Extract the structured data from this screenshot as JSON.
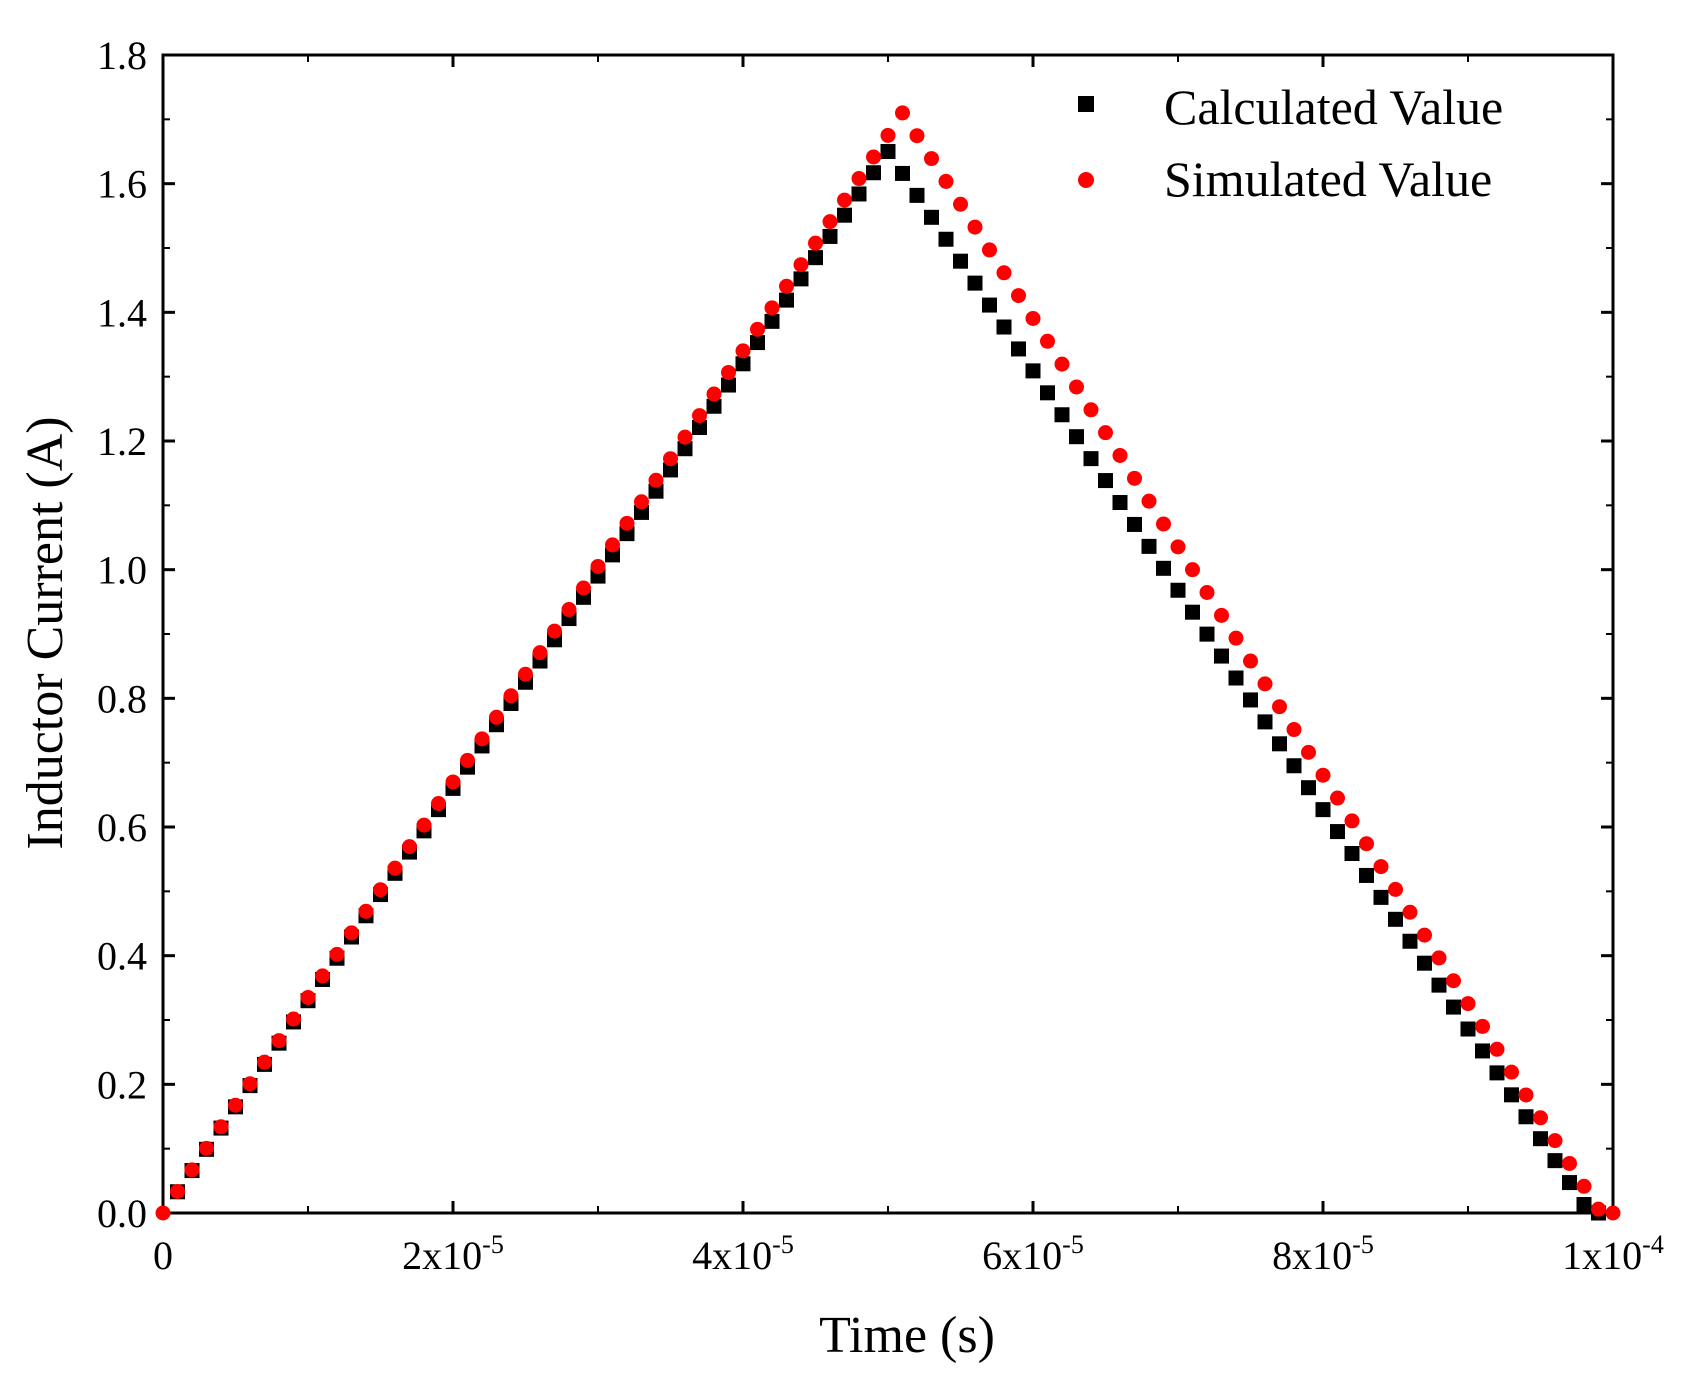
{
  "chart_data": {
    "type": "scatter",
    "title": "",
    "xlabel": "Time (s)",
    "ylabel": "Inductor Current (A)",
    "xlim": [
      0,
      0.0001
    ],
    "ylim": [
      0,
      1.8
    ],
    "x_ticks": [
      {
        "value": 0,
        "mant": "0",
        "exp": ""
      },
      {
        "value": 2e-05,
        "mant": "2x10",
        "exp": "-5"
      },
      {
        "value": 4e-05,
        "mant": "4x10",
        "exp": "-5"
      },
      {
        "value": 6e-05,
        "mant": "6x10",
        "exp": "-5"
      },
      {
        "value": 8e-05,
        "mant": "8x10",
        "exp": "-5"
      },
      {
        "value": 0.0001,
        "mant": "1x10",
        "exp": "-4"
      }
    ],
    "y_ticks": [
      {
        "value": 0.0,
        "label": "0.0"
      },
      {
        "value": 0.2,
        "label": "0.2"
      },
      {
        "value": 0.4,
        "label": "0.4"
      },
      {
        "value": 0.6,
        "label": "0.6"
      },
      {
        "value": 0.8,
        "label": "0.8"
      },
      {
        "value": 1.0,
        "label": "1.0"
      },
      {
        "value": 1.2,
        "label": "1.2"
      },
      {
        "value": 1.4,
        "label": "1.4"
      },
      {
        "value": 1.6,
        "label": "1.6"
      },
      {
        "value": 1.8,
        "label": "1.8"
      }
    ],
    "legend_position": "top-right",
    "series": [
      {
        "name": "Calculated Value",
        "marker": "square",
        "color": "#000000",
        "x": [
          1e-06,
          2e-06,
          3e-06,
          4e-06,
          5e-06,
          6e-06,
          7e-06,
          8e-06,
          9e-06,
          1e-05,
          1.1e-05,
          1.2e-05,
          1.3e-05,
          1.4e-05,
          1.5e-05,
          1.6e-05,
          1.7e-05,
          1.8e-05,
          1.9e-05,
          2e-05,
          2.1e-05,
          2.2e-05,
          2.3e-05,
          2.4e-05,
          2.5e-05,
          2.6e-05,
          2.7e-05,
          2.8e-05,
          2.9e-05,
          3e-05,
          3.1e-05,
          3.2e-05,
          3.3e-05,
          3.4e-05,
          3.5e-05,
          3.6e-05,
          3.7e-05,
          3.8e-05,
          3.9e-05,
          4e-05,
          4.1e-05,
          4.2e-05,
          4.3e-05,
          4.4e-05,
          4.5e-05,
          4.6e-05,
          4.7e-05,
          4.8e-05,
          4.9e-05,
          5e-05,
          5.1e-05,
          5.2e-05,
          5.3e-05,
          5.4e-05,
          5.5e-05,
          5.6e-05,
          5.7e-05,
          5.8e-05,
          5.9e-05,
          6e-05,
          6.1e-05,
          6.2e-05,
          6.3e-05,
          6.4e-05,
          6.5e-05,
          6.6e-05,
          6.7e-05,
          6.8e-05,
          6.9e-05,
          7e-05,
          7.1e-05,
          7.2e-05,
          7.3e-05,
          7.4e-05,
          7.5e-05,
          7.6e-05,
          7.7e-05,
          7.8e-05,
          7.9e-05,
          8e-05,
          8.1e-05,
          8.2e-05,
          8.3e-05,
          8.4e-05,
          8.5e-05,
          8.6e-05,
          8.7e-05,
          8.8e-05,
          8.9e-05,
          9e-05,
          9.1e-05,
          9.2e-05,
          9.3e-05,
          9.4e-05,
          9.5e-05,
          9.6e-05,
          9.7e-05,
          9.8e-05,
          9.9e-05
        ],
        "y": [
          0.033,
          0.066,
          0.099,
          0.132,
          0.165,
          0.198,
          0.231,
          0.264,
          0.297,
          0.33,
          0.363,
          0.396,
          0.429,
          0.462,
          0.495,
          0.528,
          0.561,
          0.594,
          0.627,
          0.66,
          0.693,
          0.726,
          0.759,
          0.792,
          0.825,
          0.858,
          0.891,
          0.924,
          0.957,
          0.99,
          1.023,
          1.056,
          1.089,
          1.122,
          1.155,
          1.188,
          1.221,
          1.254,
          1.287,
          1.32,
          1.353,
          1.386,
          1.419,
          1.452,
          1.485,
          1.518,
          1.551,
          1.584,
          1.617,
          1.65,
          1.6159,
          1.5818,
          1.5477,
          1.5136,
          1.4795,
          1.4454,
          1.4113,
          1.3772,
          1.3431,
          1.309,
          1.2749,
          1.2408,
          1.2067,
          1.1726,
          1.1385,
          1.1044,
          1.0703,
          1.0362,
          1.0021,
          0.968,
          0.9339,
          0.8998,
          0.8657,
          0.8316,
          0.7975,
          0.7634,
          0.7293,
          0.6952,
          0.6611,
          0.627,
          0.5929,
          0.5588,
          0.5247,
          0.4906,
          0.4565,
          0.4224,
          0.3883,
          0.3542,
          0.3201,
          0.286,
          0.2519,
          0.2178,
          0.1837,
          0.1496,
          0.1155,
          0.0814,
          0.0473,
          0.0132,
          0.0
        ]
      },
      {
        "name": "Simulated Value",
        "marker": "circle",
        "color": "#ff0000",
        "x": [
          0.0,
          1e-06,
          2e-06,
          3e-06,
          4e-06,
          5e-06,
          6e-06,
          7e-06,
          8e-06,
          9e-06,
          1e-05,
          1.1e-05,
          1.2e-05,
          1.3e-05,
          1.4e-05,
          1.5e-05,
          1.6e-05,
          1.7e-05,
          1.8e-05,
          1.9e-05,
          2e-05,
          2.1e-05,
          2.2e-05,
          2.3e-05,
          2.4e-05,
          2.5e-05,
          2.6e-05,
          2.7e-05,
          2.8e-05,
          2.9e-05,
          3e-05,
          3.1e-05,
          3.2e-05,
          3.3e-05,
          3.4e-05,
          3.5e-05,
          3.6e-05,
          3.7e-05,
          3.8e-05,
          3.9e-05,
          4e-05,
          4.1e-05,
          4.2e-05,
          4.3e-05,
          4.4e-05,
          4.5e-05,
          4.6e-05,
          4.7e-05,
          4.8e-05,
          4.9e-05,
          5e-05,
          5.1e-05,
          5.2e-05,
          5.3e-05,
          5.4e-05,
          5.5e-05,
          5.6e-05,
          5.7e-05,
          5.8e-05,
          5.9e-05,
          6e-05,
          6.1e-05,
          6.2e-05,
          6.3e-05,
          6.4e-05,
          6.5e-05,
          6.6e-05,
          6.7e-05,
          6.8e-05,
          6.9e-05,
          7e-05,
          7.1e-05,
          7.2e-05,
          7.3e-05,
          7.4e-05,
          7.5e-05,
          7.6e-05,
          7.7e-05,
          7.8e-05,
          7.9e-05,
          8e-05,
          8.1e-05,
          8.2e-05,
          8.3e-05,
          8.4e-05,
          8.5e-05,
          8.6e-05,
          8.7e-05,
          8.8e-05,
          8.9e-05,
          9e-05,
          9.1e-05,
          9.2e-05,
          9.3e-05,
          9.4e-05,
          9.5e-05,
          9.6e-05,
          9.7e-05,
          9.8e-05,
          9.9e-05,
          0.0001
        ],
        "y": [
          0.0,
          0.0335,
          0.067,
          0.1005,
          0.134,
          0.1675,
          0.201,
          0.2345,
          0.268,
          0.3015,
          0.335,
          0.3685,
          0.402,
          0.4355,
          0.469,
          0.5025,
          0.536,
          0.5695,
          0.603,
          0.6365,
          0.67,
          0.7035,
          0.737,
          0.7705,
          0.804,
          0.8375,
          0.871,
          0.9045,
          0.938,
          0.9715,
          1.005,
          1.0385,
          1.072,
          1.1055,
          1.139,
          1.1725,
          1.206,
          1.2395,
          1.273,
          1.3065,
          1.34,
          1.3735,
          1.407,
          1.4405,
          1.474,
          1.5075,
          1.541,
          1.5745,
          1.608,
          1.6415,
          1.675,
          1.71,
          1.6745,
          1.639,
          1.6035,
          1.568,
          1.5325,
          1.497,
          1.4615,
          1.426,
          1.3905,
          1.355,
          1.3195,
          1.284,
          1.2485,
          1.213,
          1.1775,
          1.142,
          1.1065,
          1.071,
          1.0355,
          1.0,
          0.9645,
          0.929,
          0.8935,
          0.858,
          0.8225,
          0.787,
          0.7515,
          0.716,
          0.6805,
          0.645,
          0.6095,
          0.574,
          0.5385,
          0.503,
          0.4675,
          0.432,
          0.3965,
          0.361,
          0.3255,
          0.29,
          0.2545,
          0.219,
          0.1835,
          0.148,
          0.1125,
          0.077,
          0.0415,
          0.006,
          0.0
        ]
      }
    ]
  }
}
